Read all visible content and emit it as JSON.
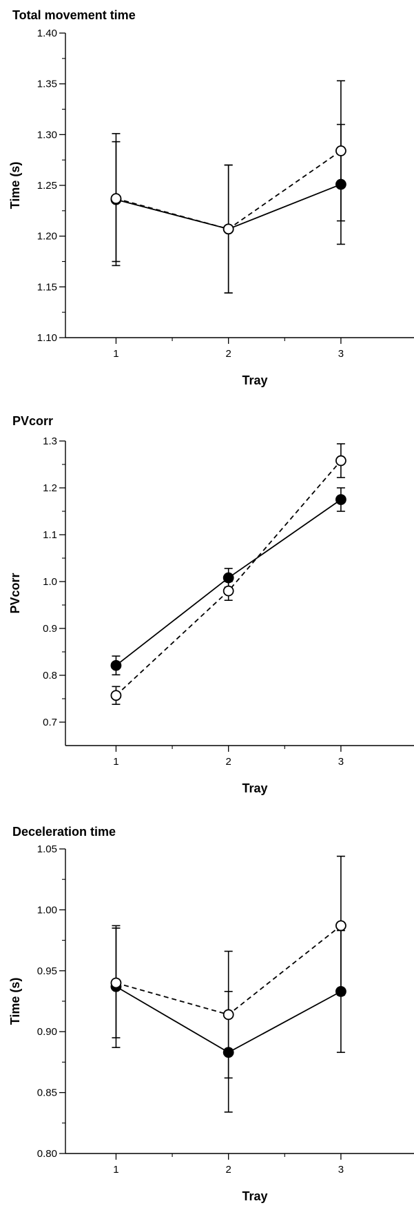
{
  "chart_data": [
    {
      "type": "line",
      "title": "Total movement time",
      "xlabel": "Tray",
      "ylabel": "Time (s)",
      "x": [
        1,
        2,
        3
      ],
      "xticks": [
        "1",
        "2",
        "3"
      ],
      "ylim": [
        1.1,
        1.4
      ],
      "yticks": [
        "1.10",
        "1.15",
        "1.20",
        "1.25",
        "1.30",
        "1.35",
        "1.40"
      ],
      "series": [
        {
          "marker": "filled",
          "line": "solid",
          "values": [
            1.236,
            1.207,
            1.251
          ],
          "err_low": [
            1.171,
            1.144,
            1.192
          ],
          "err_high": [
            1.301,
            1.27,
            1.31
          ]
        },
        {
          "marker": "open",
          "line": "dashed",
          "values": [
            1.237,
            1.207,
            1.284
          ],
          "err_low": [
            1.175,
            1.144,
            1.215
          ],
          "err_high": [
            1.293,
            1.27,
            1.353
          ]
        }
      ]
    },
    {
      "type": "line",
      "title": "PVcorr",
      "xlabel": "Tray",
      "ylabel": "PVcorr",
      "x": [
        1,
        2,
        3
      ],
      "xticks": [
        "1",
        "2",
        "3"
      ],
      "ylim": [
        0.65,
        1.3
      ],
      "yticks": [
        "0.7",
        "0.8",
        "0.9",
        "1.0",
        "1.1",
        "1.2",
        "1.3"
      ],
      "series": [
        {
          "marker": "filled",
          "line": "solid",
          "values": [
            0.821,
            1.008,
            1.175
          ],
          "err_low": [
            0.801,
            0.988,
            1.15
          ],
          "err_high": [
            0.841,
            1.028,
            1.2
          ]
        },
        {
          "marker": "open",
          "line": "dashed",
          "values": [
            0.757,
            0.98,
            1.258
          ],
          "err_low": [
            0.738,
            0.96,
            1.222
          ],
          "err_high": [
            0.776,
            1.0,
            1.294
          ]
        }
      ]
    },
    {
      "type": "line",
      "title": "Deceleration time",
      "xlabel": "Tray",
      "ylabel": "Time (s)",
      "x": [
        1,
        2,
        3
      ],
      "xticks": [
        "1",
        "2",
        "3"
      ],
      "ylim": [
        0.8,
        1.05
      ],
      "yticks": [
        "0.80",
        "0.85",
        "0.90",
        "0.95",
        "1.00",
        "1.05"
      ],
      "series": [
        {
          "marker": "filled",
          "line": "solid",
          "values": [
            0.937,
            0.883,
            0.933
          ],
          "err_low": [
            0.887,
            0.834,
            0.883
          ],
          "err_high": [
            0.987,
            0.933,
            0.983
          ]
        },
        {
          "marker": "open",
          "line": "dashed",
          "values": [
            0.94,
            0.914,
            0.987
          ],
          "err_low": [
            0.895,
            0.862,
            0.93
          ],
          "err_high": [
            0.985,
            0.966,
            1.044
          ]
        }
      ]
    }
  ]
}
